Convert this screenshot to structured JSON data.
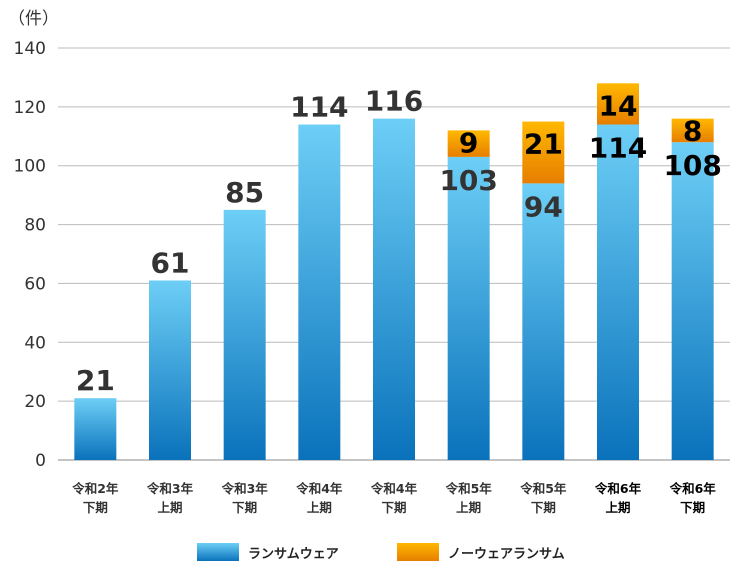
{
  "chart_data": {
    "type": "bar",
    "stacked": true,
    "yunit": "（件）",
    "ylim": [
      0,
      140
    ],
    "yticks": [
      0,
      20,
      40,
      60,
      80,
      100,
      120,
      140
    ],
    "grid": true,
    "legend_position": "bottom",
    "categories": [
      [
        "令和2年",
        "下期"
      ],
      [
        "令和3年",
        "上期"
      ],
      [
        "令和3年",
        "下期"
      ],
      [
        "令和4年",
        "上期"
      ],
      [
        "令和4年",
        "下期"
      ],
      [
        "令和5年",
        "上期"
      ],
      [
        "令和5年",
        "下期"
      ],
      [
        "令和6年",
        "上期"
      ],
      [
        "令和6年",
        "下期"
      ]
    ],
    "series": [
      {
        "name": "ランサムウェア",
        "values": [
          21,
          61,
          85,
          114,
          116,
          103,
          94,
          114,
          108
        ],
        "color_top": "#6dcff6",
        "color_bottom": "#0a72bb"
      },
      {
        "name": "ノーウェアランサム",
        "values": [
          null,
          null,
          null,
          null,
          null,
          9,
          21,
          14,
          8
        ],
        "color_top": "#ffb800",
        "color_bottom": "#e67e00"
      }
    ]
  }
}
